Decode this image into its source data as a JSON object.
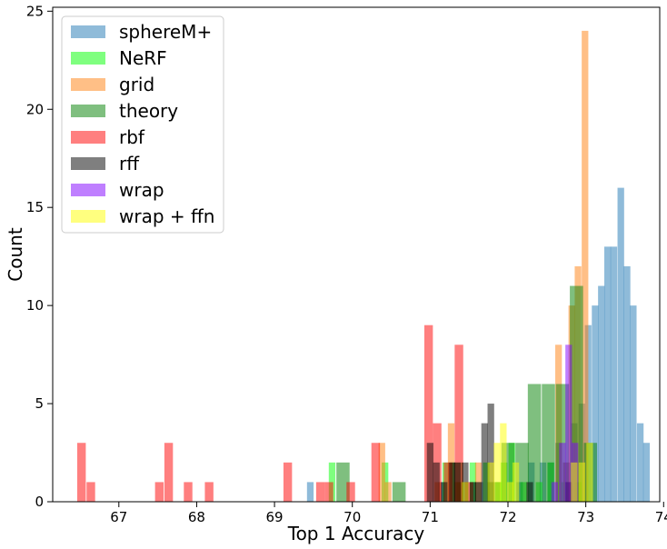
{
  "chart_data": {
    "type": "histogram",
    "xlabel": "Top 1 Accuracy",
    "ylabel": "Count",
    "xlim": [
      66.15,
      73.95
    ],
    "ylim": [
      0,
      25.2
    ],
    "xticks": [
      "67",
      "68",
      "69",
      "70",
      "71",
      "72",
      "73",
      "74"
    ],
    "yticks": [
      "0",
      "5",
      "10",
      "15",
      "20",
      "25"
    ],
    "legend_position": "top-left",
    "grid": false,
    "series": [
      {
        "name": "sphereM+",
        "color": "#1f77b4",
        "alpha": 0.5,
        "bin_width": 0.085,
        "bins": [
          [
            69.46,
            1
          ],
          [
            71.15,
            1
          ],
          [
            71.45,
            1
          ],
          [
            71.55,
            1
          ],
          [
            71.64,
            1
          ],
          [
            72.15,
            1
          ],
          [
            72.3,
            2
          ],
          [
            72.45,
            2
          ],
          [
            72.55,
            2
          ],
          [
            72.65,
            3
          ],
          [
            72.75,
            2
          ],
          [
            72.85,
            4
          ],
          [
            72.95,
            5
          ],
          [
            73.03,
            9
          ],
          [
            73.12,
            10
          ],
          [
            73.2,
            11
          ],
          [
            73.28,
            13
          ],
          [
            73.36,
            13
          ],
          [
            73.45,
            16
          ],
          [
            73.53,
            12
          ],
          [
            73.61,
            10
          ],
          [
            73.7,
            4
          ],
          [
            73.78,
            3
          ]
        ]
      },
      {
        "name": "NeRF",
        "color": "#00ff00",
        "alpha": 0.5,
        "bin_width": 0.085,
        "bins": [
          [
            69.74,
            2
          ],
          [
            70.42,
            2
          ],
          [
            71.2,
            2
          ],
          [
            71.38,
            1
          ],
          [
            71.55,
            2
          ],
          [
            71.72,
            2
          ],
          [
            71.88,
            1
          ],
          [
            71.95,
            2
          ],
          [
            72.05,
            3
          ],
          [
            72.2,
            1
          ],
          [
            72.4,
            1
          ],
          [
            72.55,
            2
          ],
          [
            72.72,
            1
          ],
          [
            72.9,
            1
          ]
        ]
      },
      {
        "name": "grid",
        "color": "#ff7f0e",
        "alpha": 0.5,
        "bin_width": 0.085,
        "bins": [
          [
            70.38,
            3
          ],
          [
            70.46,
            1
          ],
          [
            71.1,
            1
          ],
          [
            71.27,
            4
          ],
          [
            71.35,
            1
          ],
          [
            71.62,
            2
          ],
          [
            72.65,
            8
          ],
          [
            72.75,
            2
          ],
          [
            72.82,
            10
          ],
          [
            72.9,
            12
          ],
          [
            72.99,
            24
          ]
        ]
      },
      {
        "name": "theory",
        "color": "#008000",
        "alpha": 0.5,
        "bin_width": 0.17,
        "bins": [
          [
            69.88,
            2
          ],
          [
            70.6,
            1
          ],
          [
            71.34,
            2
          ],
          [
            71.82,
            1
          ],
          [
            72.0,
            3
          ],
          [
            72.18,
            3
          ],
          [
            72.34,
            6
          ],
          [
            72.52,
            6
          ],
          [
            72.7,
            6
          ],
          [
            72.88,
            11
          ],
          [
            73.06,
            3
          ]
        ]
      },
      {
        "name": "rbf",
        "color": "#ff0000",
        "alpha": 0.5,
        "bin_width": 0.11,
        "bins": [
          [
            66.52,
            3
          ],
          [
            66.64,
            1
          ],
          [
            67.52,
            1
          ],
          [
            67.64,
            3
          ],
          [
            67.89,
            1
          ],
          [
            68.16,
            1
          ],
          [
            69.17,
            2
          ],
          [
            69.59,
            1
          ],
          [
            69.7,
            1
          ],
          [
            69.98,
            1
          ],
          [
            70.3,
            3
          ],
          [
            70.98,
            9
          ],
          [
            71.09,
            4
          ],
          [
            71.23,
            2
          ],
          [
            71.37,
            8
          ],
          [
            71.5,
            1
          ]
        ]
      },
      {
        "name": "rff",
        "color": "#000000",
        "alpha": 0.5,
        "bin_width": 0.085,
        "bins": [
          [
            71.0,
            3
          ],
          [
            71.08,
            2
          ],
          [
            71.18,
            1
          ],
          [
            71.28,
            2
          ],
          [
            71.35,
            2
          ],
          [
            71.45,
            2
          ],
          [
            71.55,
            1
          ],
          [
            71.62,
            1
          ],
          [
            71.7,
            4
          ],
          [
            71.78,
            5
          ],
          [
            72.28,
            1
          ],
          [
            72.78,
            1
          ]
        ]
      },
      {
        "name": "wrap",
        "color": "#8000ff",
        "alpha": 0.5,
        "bin_width": 0.085,
        "bins": [
          [
            72.6,
            1
          ],
          [
            72.7,
            3
          ],
          [
            72.78,
            8
          ],
          [
            72.86,
            3
          ]
        ]
      },
      {
        "name": "wrap + ffn",
        "color": "#ffff00",
        "alpha": 0.5,
        "bin_width": 0.085,
        "bins": [
          [
            71.45,
            1
          ],
          [
            71.78,
            2
          ],
          [
            71.86,
            3
          ],
          [
            71.94,
            4
          ],
          [
            72.03,
            1
          ],
          [
            72.1,
            2
          ],
          [
            72.85,
            2
          ],
          [
            72.95,
            2
          ],
          [
            73.05,
            3
          ]
        ]
      }
    ]
  }
}
